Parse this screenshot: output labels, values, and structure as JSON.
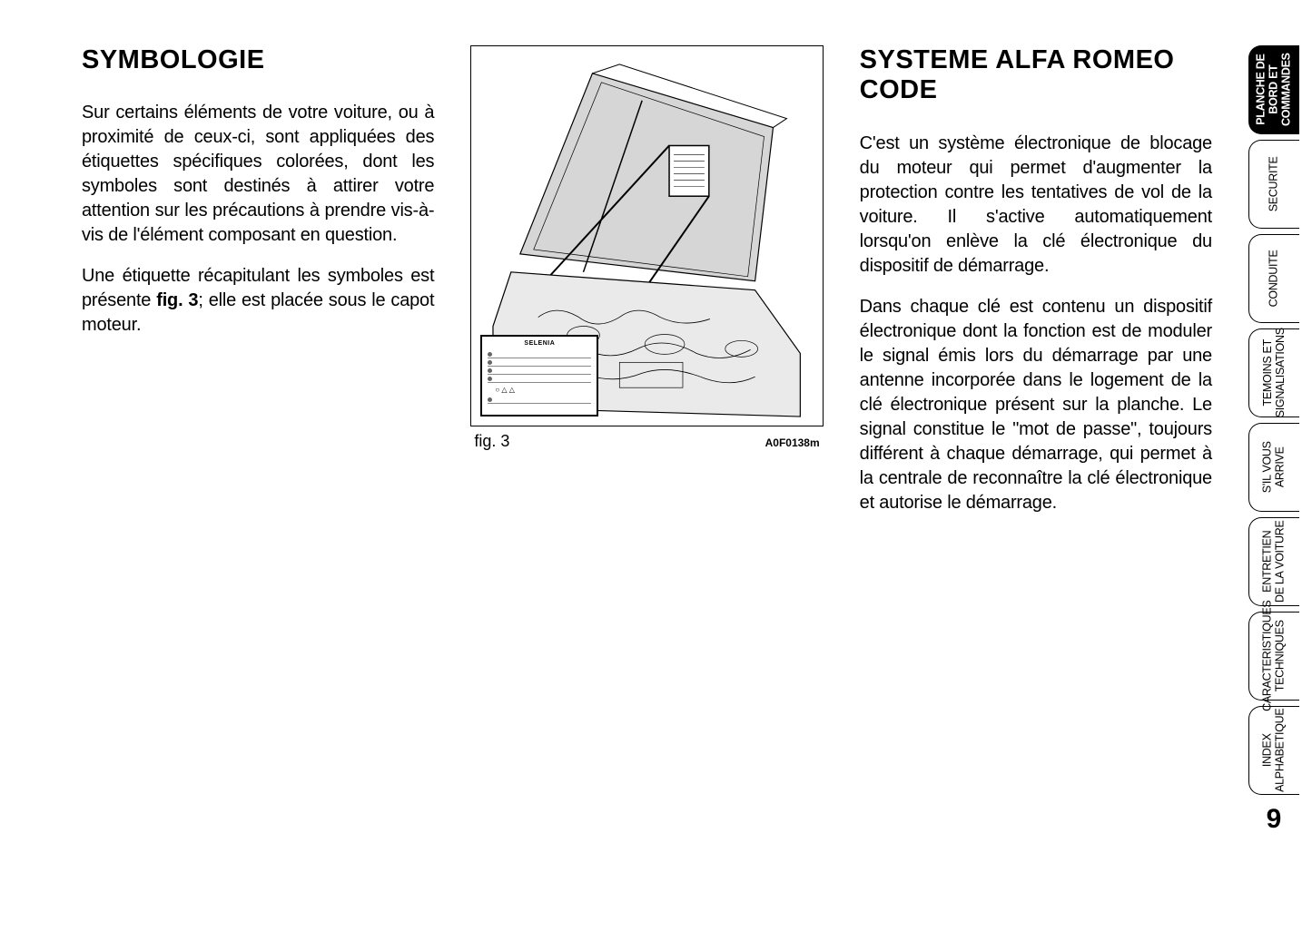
{
  "page_number": "9",
  "left_column": {
    "heading": "SYMBOLOGIE",
    "para1": "Sur certains éléments de votre voiture, ou à proximité de ceux-ci, sont appliquées des étiquettes spécifiques colorées, dont les symboles sont destinés à attirer votre attention sur les précautions à prendre vis-à-vis de l'élément composant en question.",
    "para2_a": "Une étiquette récapitulant les symboles est présente ",
    "para2_fig": "fig. 3",
    "para2_b": "; elle est placée sous le capot moteur."
  },
  "figure": {
    "caption": "fig. 3",
    "code": "A0F0138m",
    "inset_title": "SELENIA",
    "colors": {
      "stroke": "#000000",
      "fill_hood": "#d6d6d6",
      "fill_engine": "#eaeaea",
      "fill_label": "#ffffff",
      "inset_border": "#000000"
    }
  },
  "right_column": {
    "heading": "SYSTEME ALFA ROMEO CODE",
    "para1": "C'est un système électronique de blocage du moteur qui permet d'augmenter la protection contre les tentatives de vol de la voiture. Il s'active automatiquement lorsqu'on enlève la clé électronique du dispositif de démarrage.",
    "para2": "Dans chaque clé est contenu un dispositif électronique dont la fonction est de moduler le signal émis lors du démarrage par une antenne incorporée dans le logement de la clé électronique présent sur la planche. Le signal constitue le \"mot de passe\", toujours différent à chaque démarrage, qui permet à la centrale de reconnaître la clé électronique et autorise le démarrage."
  },
  "tabs": [
    {
      "label": "PLANCHE DE\nBORD ET\nCOMMANDES",
      "active": true
    },
    {
      "label": "SECURITE",
      "active": false
    },
    {
      "label": "CONDUITE",
      "active": false
    },
    {
      "label": "TEMOINS ET\nSIGNALISATIONS",
      "active": false
    },
    {
      "label": "S'IL VOUS\nARRIVE",
      "active": false
    },
    {
      "label": "ENTRETIEN\nDE LA VOITURE",
      "active": false
    },
    {
      "label": "CARACTERISTIQUES\nTECHNIQUES",
      "active": false
    },
    {
      "label": "INDEX\nALPHABETIQUE",
      "active": false
    }
  ],
  "typography": {
    "heading_fontsize_pt": 22,
    "body_fontsize_pt": 15,
    "tab_fontsize_pt": 9,
    "pagenum_fontsize_pt": 22,
    "text_color": "#000000",
    "background_color": "#ffffff"
  }
}
